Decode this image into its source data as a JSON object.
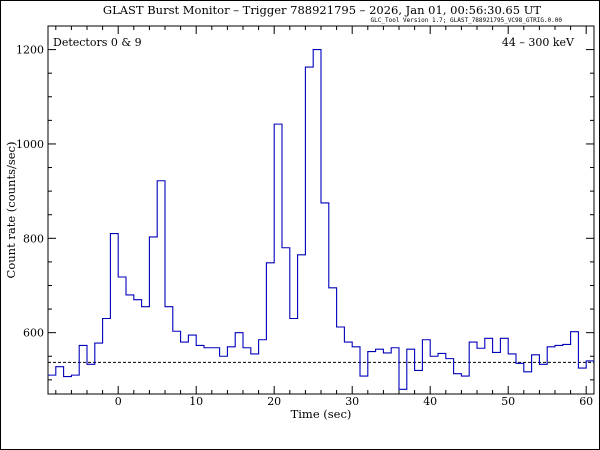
{
  "chart_data": {
    "type": "line",
    "step": true,
    "title": "GLAST Burst Monitor  –  Trigger 788921795  –  2026, Jan 01, 00:56:30.65 UT",
    "subtitle": "GLC_Tool Version 1.7; GLAST_788921795_VC98_GTRIG.0.00",
    "xlabel": "Time (sec)",
    "ylabel": "Count rate (counts/sec)",
    "xlim": [
      -9,
      61
    ],
    "ylim": [
      470,
      1250
    ],
    "xticks": [
      0,
      10,
      20,
      30,
      40,
      50,
      60
    ],
    "yticks": [
      600,
      800,
      1000,
      1200
    ],
    "annotation_left": "Detectors 0 & 9",
    "annotation_right": "44 – 300 keV",
    "background_level": 537,
    "line_color": "#0000bb",
    "series": [
      {
        "bin_width": 1,
        "x": [
          -9,
          -8,
          -7,
          -6,
          -5,
          -4,
          -3,
          -2,
          -1,
          0,
          1,
          2,
          3,
          4,
          5,
          6,
          7,
          8,
          9,
          10,
          11,
          12,
          13,
          14,
          15,
          16,
          17,
          18,
          19,
          20,
          21,
          22,
          23,
          24,
          25,
          26,
          27,
          28,
          29,
          30,
          31,
          32,
          33,
          34,
          35,
          36,
          37,
          38,
          39,
          40,
          41,
          42,
          43,
          44,
          45,
          46,
          47,
          48,
          49,
          50,
          51,
          52,
          53,
          54,
          55,
          56,
          57,
          58,
          59,
          60
        ],
        "values": [
          510,
          528,
          507,
          510,
          573,
          533,
          578,
          630,
          810,
          718,
          680,
          670,
          655,
          803,
          922,
          655,
          603,
          580,
          595,
          573,
          568,
          568,
          550,
          570,
          600,
          568,
          555,
          585,
          748,
          1042,
          780,
          630,
          765,
          1163,
          1200,
          875,
          695,
          612,
          580,
          570,
          508,
          560,
          565,
          557,
          568,
          480,
          565,
          520,
          585,
          550,
          556,
          545,
          513,
          508,
          580,
          567,
          588,
          558,
          588,
          555,
          535,
          517,
          553,
          533,
          570,
          573,
          575,
          602,
          525,
          540
        ]
      }
    ]
  }
}
